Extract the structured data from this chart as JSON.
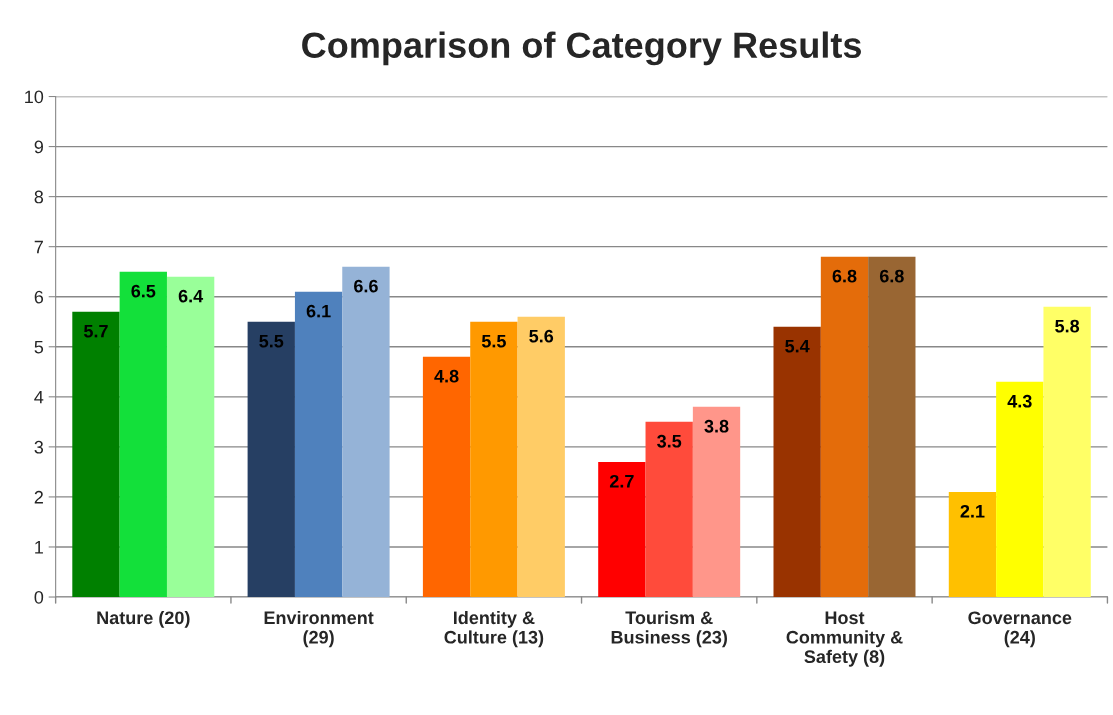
{
  "chart_data": {
    "type": "bar",
    "title": "Comparison of Category Results",
    "categories": [
      "Nature (20)",
      "Environment\n(29)",
      "Identity &\nCulture (13)",
      "Tourism &\nBusiness (23)",
      "Host\nCommunity &\nSafety (8)",
      "Governance\n(24)"
    ],
    "series": [
      {
        "colors": [
          "#008000",
          "#263f63",
          "#ff6600",
          "#ff0000",
          "#993300",
          "#ffc000"
        ],
        "values": [
          5.7,
          5.5,
          4.8,
          2.7,
          5.4,
          2.1
        ]
      },
      {
        "colors": [
          "#13e03a",
          "#4f81bd",
          "#ff9900",
          "#ff4b3b",
          "#e46c0a",
          "#ffff00"
        ],
        "values": [
          6.5,
          6.1,
          5.5,
          3.5,
          6.8,
          4.3
        ]
      },
      {
        "colors": [
          "#99ff99",
          "#95b3d7",
          "#ffcc66",
          "#ff968a",
          "#996633",
          "#ffff66"
        ],
        "values": [
          6.4,
          6.6,
          5.6,
          3.8,
          6.8,
          5.8
        ]
      }
    ],
    "ylim": [
      0,
      10
    ],
    "yticks": [
      0,
      1,
      2,
      3,
      4,
      5,
      6,
      7,
      8,
      9,
      10
    ],
    "grid": "y",
    "data_labels": true
  }
}
